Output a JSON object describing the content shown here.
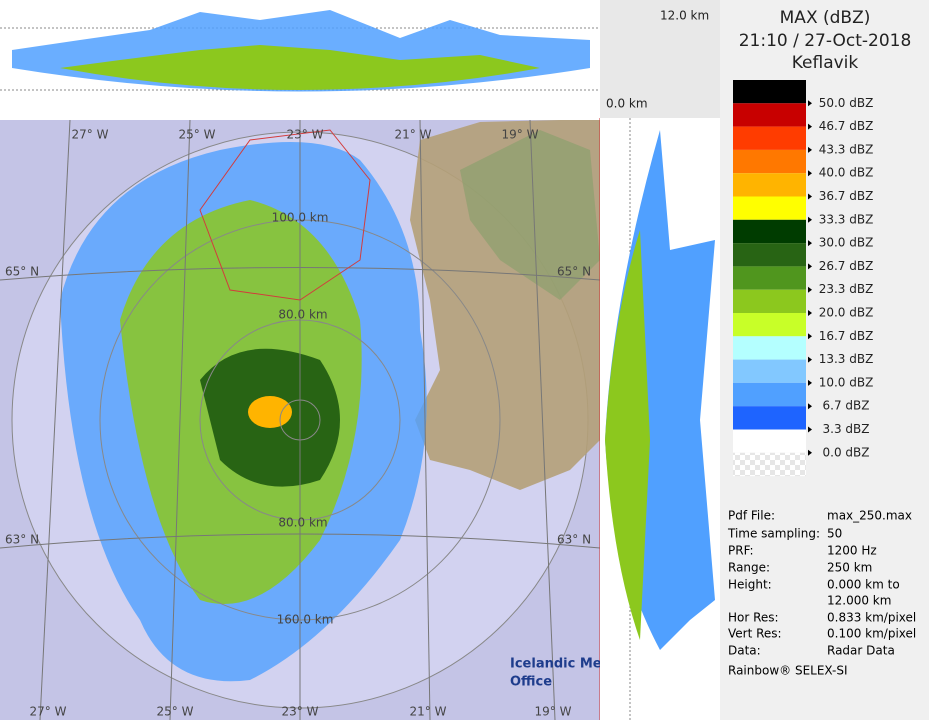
{
  "top_panel": {
    "top_label": "12.0 km",
    "bottom_label": "0.0 km"
  },
  "header": {
    "title": "MAX (dBZ)",
    "time": "21:10 / 27-Oct-2018",
    "station": "Keflavik"
  },
  "legend": {
    "colors": [
      "#000000",
      "#c80000",
      "#ff3c00",
      "#ff7800",
      "#ffb400",
      "#ffff00",
      "#003c00",
      "#286414",
      "#50961e",
      "#8cc81e",
      "#c8ff28",
      "#b4ffff",
      "#82c8ff",
      "#50a0ff",
      "#1e64ff",
      "#ffffff"
    ],
    "labels": [
      "50.0 dBZ",
      "46.7 dBZ",
      "43.3 dBZ",
      "40.0 dBZ",
      "36.7 dBZ",
      "33.3 dBZ",
      "30.0 dBZ",
      "26.7 dBZ",
      "23.3 dBZ",
      "20.0 dBZ",
      "16.7 dBZ",
      "13.3 dBZ",
      "10.0 dBZ",
      "6.7 dBZ",
      "3.3 dBZ",
      "0.0 dBZ"
    ]
  },
  "info": [
    [
      "Pdf File:",
      "max_250.max"
    ],
    [
      "Time sampling:",
      "50"
    ],
    [
      "PRF:",
      "1200 Hz"
    ],
    [
      "Range:",
      "250 km"
    ],
    [
      "Height:",
      "0.000 km to"
    ],
    [
      "",
      "12.000 km"
    ],
    [
      "Hor Res:",
      "0.833 km/pixel"
    ],
    [
      "Vert Res:",
      "0.100 km/pixel"
    ],
    [
      "Data:",
      "Radar Data"
    ]
  ],
  "footer": "Rainbow® SELEX-SI",
  "map": {
    "top_lon_labels": [
      "27° W",
      "25° W",
      "23° W",
      "21° W",
      "19° W"
    ],
    "bottom_lon_labels": [
      "27° W",
      "25° W",
      "23° W",
      "21° W",
      "19° W"
    ],
    "lat_labels_left": [
      "65° N",
      "63° N"
    ],
    "lat_labels_right": [
      "65° N",
      "63° N"
    ],
    "ring_labels": [
      "100.0 km",
      "80.0 km",
      "80.0 km",
      "160.0 km"
    ],
    "logo": [
      "Icelandic Met",
      "Office"
    ]
  }
}
